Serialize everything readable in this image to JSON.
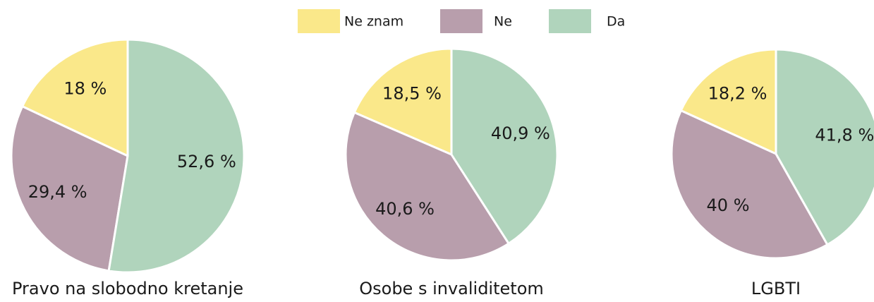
{
  "legend": {
    "labels": [
      "Ne znam",
      "Ne",
      "Da"
    ],
    "colors": [
      "#fae88a",
      "#b89eac",
      "#b0d4bc"
    ]
  },
  "chart_data": [
    {
      "type": "pie",
      "title": "Pravo na slobodno kretanje",
      "values": [
        18,
        29.4,
        52.6
      ],
      "value_labels": [
        "18 %",
        "29,4 %",
        "52,6 %"
      ]
    },
    {
      "type": "pie",
      "title": "Osobe s invaliditetom",
      "values": [
        18.5,
        40.6,
        40.9
      ],
      "value_labels": [
        "18,5 %",
        "40,6 %",
        "40,9 %"
      ]
    },
    {
      "type": "pie",
      "title": "LGBTI",
      "values": [
        18.2,
        40,
        41.8
      ],
      "value_labels": [
        "18,2 %",
        "40 %",
        "41,8 %"
      ]
    }
  ]
}
